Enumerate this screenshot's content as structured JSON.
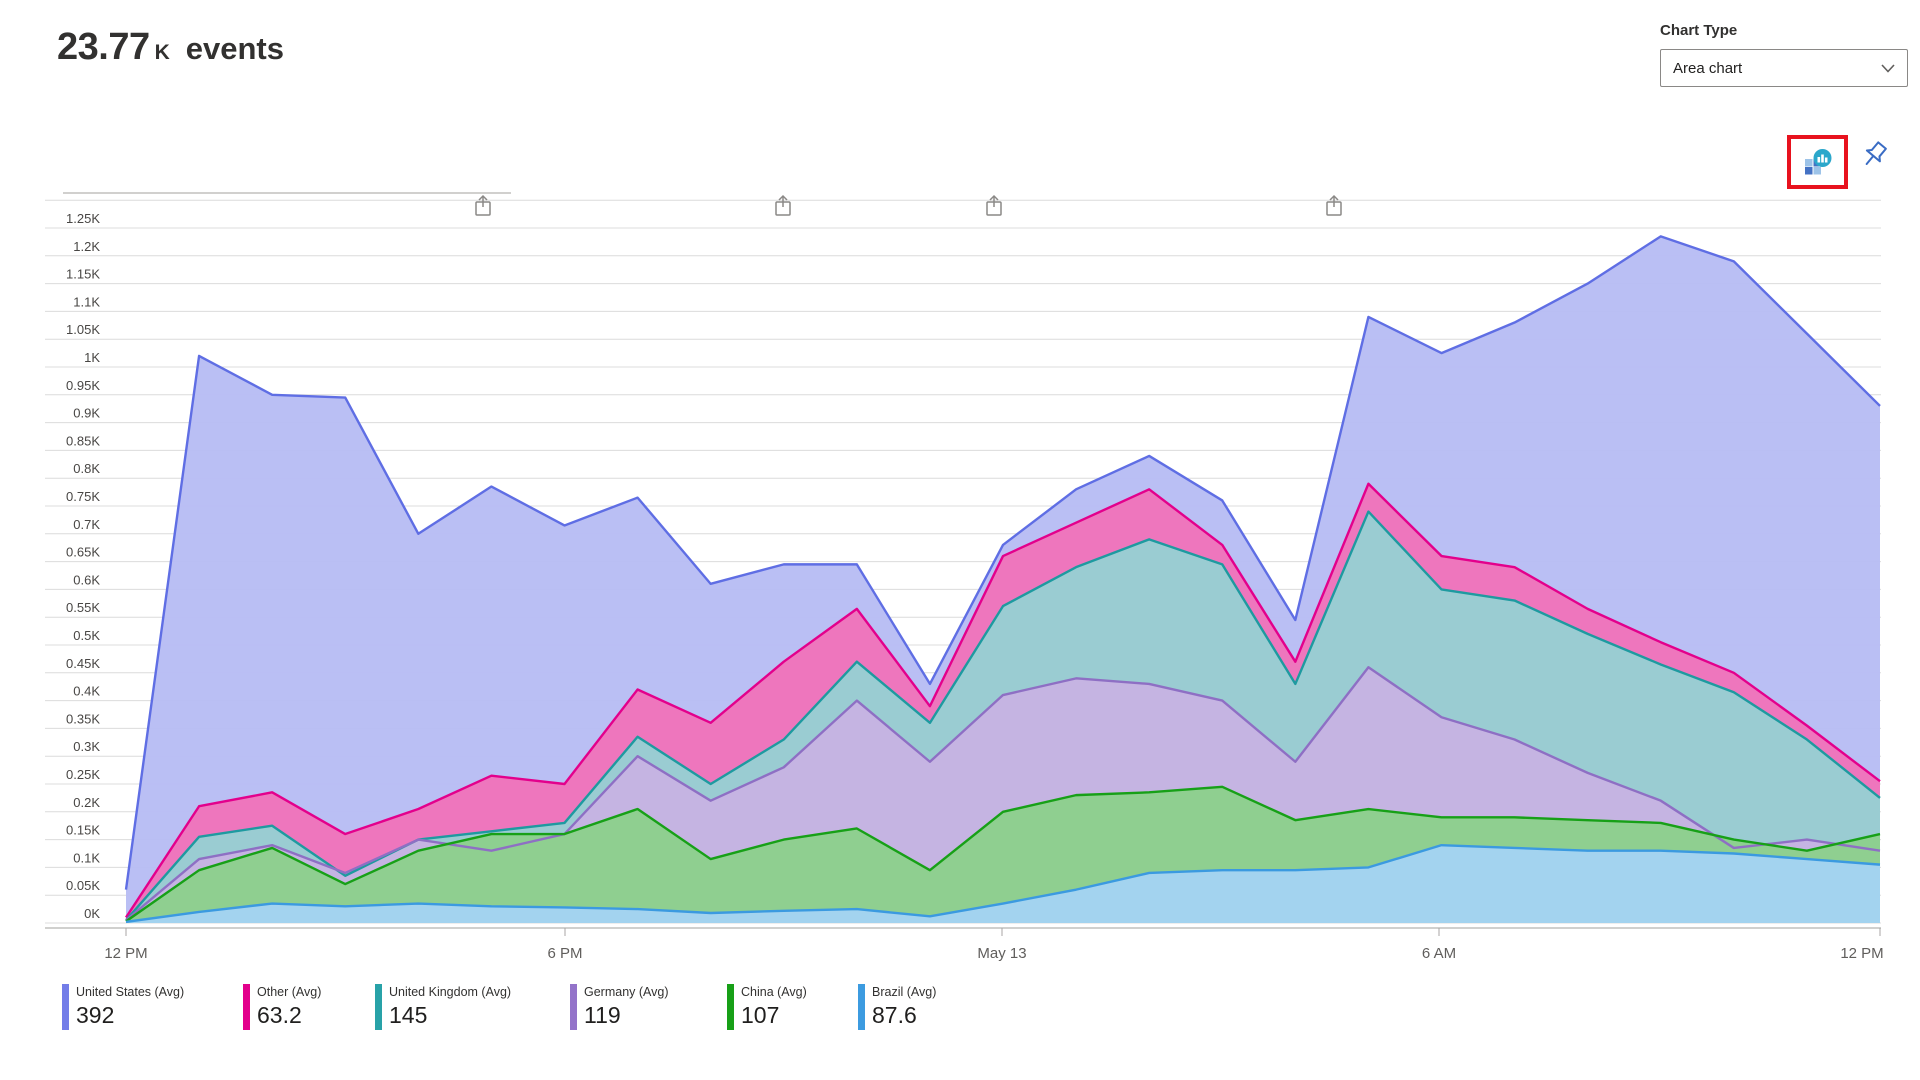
{
  "header": {
    "value": "23.77",
    "unit": "K",
    "label": "events"
  },
  "chart_type": {
    "label": "Chart Type",
    "value": "Area chart"
  },
  "toolbar": {
    "workbook_icon": "chart-insights-workbook",
    "pin_icon": "pushpin",
    "highlight_color": "#e8121e"
  },
  "chart_data": {
    "type": "area",
    "mode": "overlapping-translucent",
    "title": "23.77 K events",
    "ylabel": "events",
    "ylim": [
      0,
      1250
    ],
    "grid": true,
    "legend_position": "bottom",
    "x_points": 25,
    "x_tick_labels": [
      "12 PM",
      "6 PM",
      "May 13",
      "6 AM",
      "12 PM"
    ],
    "y_tick_labels": [
      "1.25K",
      "1.2K",
      "1.15K",
      "1.1K",
      "1.05K",
      "1K",
      "0.95K",
      "0.9K",
      "0.85K",
      "0.8K",
      "0.75K",
      "0.7K",
      "0.65K",
      "0.6K",
      "0.55K",
      "0.5K",
      "0.45K",
      "0.4K",
      "0.35K",
      "0.3K",
      "0.25K",
      "0.2K",
      "0.15K",
      "0.1K",
      "0.05K",
      "0K"
    ],
    "series": [
      {
        "name": "United States (Avg)",
        "avg": "392",
        "stroke": "#5F6EE4",
        "fill": "#B7BCF4",
        "values": [
          60,
          1020,
          950,
          945,
          700,
          785,
          715,
          765,
          610,
          645,
          645,
          430,
          680,
          780,
          840,
          760,
          545,
          1090,
          1025,
          1080,
          1150,
          1235,
          1190,
          1060,
          930
        ]
      },
      {
        "name": "Other (Avg)",
        "avg": "63.2",
        "stroke": "#E3008C",
        "fill": "#F073BA",
        "values": [
          10,
          210,
          235,
          160,
          205,
          265,
          250,
          420,
          360,
          470,
          565,
          390,
          660,
          720,
          780,
          680,
          470,
          790,
          660,
          640,
          565,
          505,
          450,
          355,
          255
        ]
      },
      {
        "name": "United Kingdom (Avg)",
        "avg": "145",
        "stroke": "#1E9AA0",
        "fill": "#96CFD2",
        "values": [
          5,
          155,
          175,
          85,
          150,
          165,
          180,
          335,
          250,
          330,
          470,
          360,
          570,
          640,
          690,
          645,
          430,
          740,
          600,
          580,
          520,
          465,
          415,
          330,
          225
        ]
      },
      {
        "name": "Germany (Avg)",
        "avg": "119",
        "stroke": "#8E6FC4",
        "fill": "#C7B3E2",
        "values": [
          5,
          115,
          140,
          90,
          150,
          130,
          160,
          300,
          220,
          280,
          400,
          290,
          410,
          440,
          430,
          400,
          290,
          460,
          370,
          330,
          270,
          220,
          135,
          150,
          130
        ]
      },
      {
        "name": "China (Avg)",
        "avg": "107",
        "stroke": "#17A017",
        "fill": "#8CD08C",
        "values": [
          3,
          95,
          135,
          70,
          130,
          160,
          160,
          205,
          115,
          150,
          170,
          95,
          200,
          230,
          235,
          245,
          185,
          205,
          190,
          190,
          185,
          180,
          150,
          130,
          160
        ]
      },
      {
        "name": "Brazil (Avg)",
        "avg": "87.6",
        "stroke": "#3B9AE0",
        "fill": "#A3D3F2",
        "values": [
          2,
          20,
          35,
          30,
          35,
          30,
          28,
          25,
          18,
          22,
          25,
          12,
          35,
          60,
          90,
          95,
          95,
          100,
          140,
          135,
          130,
          130,
          125,
          115,
          105
        ]
      }
    ]
  },
  "legend": [
    {
      "label": "United States (Avg)",
      "value": "392",
      "color": "#737DE8"
    },
    {
      "label": "Other (Avg)",
      "value": "63.2",
      "color": "#E3008C"
    },
    {
      "label": "United Kingdom (Avg)",
      "value": "145",
      "color": "#28A2A8"
    },
    {
      "label": "Germany (Avg)",
      "value": "119",
      "color": "#9373C9"
    },
    {
      "label": "China (Avg)",
      "value": "107",
      "color": "#17A017"
    },
    {
      "label": "Brazil (Avg)",
      "value": "87.6",
      "color": "#3C9BE0"
    }
  ]
}
